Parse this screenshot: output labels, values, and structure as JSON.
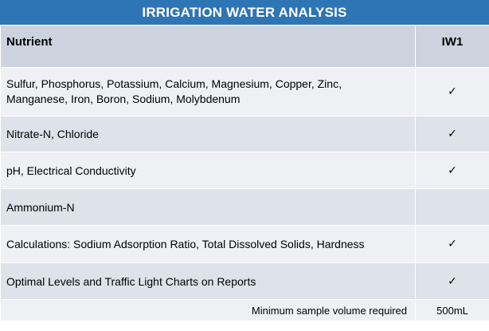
{
  "title": "IRRIGATION WATER ANALYSIS",
  "header": {
    "col1": "Nutrient",
    "col2": "IW1"
  },
  "rows": [
    {
      "lines": [
        "Sulfur, Phosphorus, Potassium, Calcium, Magnesium, Copper, Zinc,",
        "Manganese, Iron, Boron, Sodium, Molybdenum"
      ],
      "check": "✓"
    },
    {
      "lines": [
        "Nitrate-N, Chloride"
      ],
      "check": "✓"
    },
    {
      "lines": [
        "pH, Electrical Conductivity"
      ],
      "check": "✓"
    },
    {
      "lines": [
        "Ammonium-N"
      ],
      "check": ""
    },
    {
      "lines": [
        "Calculations: Sodium Adsorption Ratio, Total Dissolved Solids, Hardness"
      ],
      "check": "✓"
    },
    {
      "lines": [
        "Optimal Levels  and Traffic Light Charts on Reports"
      ],
      "check": "✓"
    }
  ],
  "footer": {
    "label": "Minimum sample volume required",
    "value": "500mL"
  },
  "colors": {
    "title_bg": "#2e75b6",
    "header_bg": "#cdd3de",
    "row_dark": "#dee2ea",
    "row_light": "#eef0f4"
  }
}
